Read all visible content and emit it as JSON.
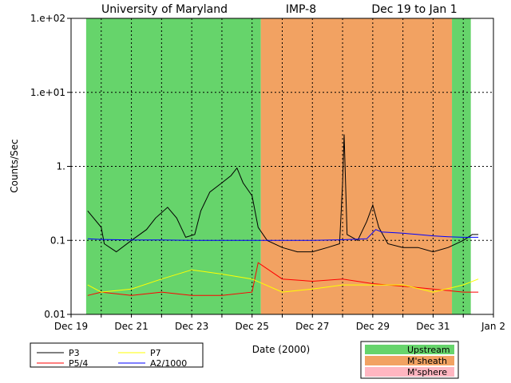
{
  "chart_data": {
    "type": "line",
    "title": {
      "institution": "University of Maryland",
      "spacecraft": "IMP-8",
      "range": "Dec 19 to Jan 1"
    },
    "xlabel": "Date (2000)",
    "ylabel": "Counts/Sec",
    "y_scale": "log",
    "ylim": [
      0.01,
      100
    ],
    "y_ticks": [
      {
        "value": 0.01,
        "label": "0.01"
      },
      {
        "value": 0.1,
        "label": "0.1"
      },
      {
        "value": 1,
        "label": "1."
      },
      {
        "value": 10,
        "label": "1.e+01"
      },
      {
        "value": 100,
        "label": "1.e+02"
      }
    ],
    "xlim": [
      "2000-12-19",
      "2001-01-02"
    ],
    "x_ticks": [
      {
        "day": 0,
        "label": "Dec 19"
      },
      {
        "day": 2,
        "label": "Dec 21"
      },
      {
        "day": 4,
        "label": "Dec 23"
      },
      {
        "day": 6,
        "label": "Dec 25"
      },
      {
        "day": 8,
        "label": "Dec 27"
      },
      {
        "day": 10,
        "label": "Dec 29"
      },
      {
        "day": 12,
        "label": "Dec 31"
      },
      {
        "day": 14,
        "label": "Jan 2"
      }
    ],
    "grid": true,
    "regions": [
      {
        "name": "Upstream",
        "from": "2000-12-19 12:00",
        "to": "2000-12-25 07:00",
        "color": "#66d46b"
      },
      {
        "name": "M'sheath",
        "from": "2000-12-25 07:00",
        "to": "2000-12-31 15:00",
        "color": "#f2a262"
      },
      {
        "name": "Upstream",
        "from": "2000-12-31 15:00",
        "to": "2001-01-01 06:00",
        "color": "#66d46b"
      }
    ],
    "series": [
      {
        "name": "P3",
        "color": "#000000",
        "points": [
          [
            0.55,
            0.25
          ],
          [
            1.0,
            0.15
          ],
          [
            1.1,
            0.09
          ],
          [
            1.5,
            0.07
          ],
          [
            2.0,
            0.1
          ],
          [
            2.5,
            0.14
          ],
          [
            2.8,
            0.2
          ],
          [
            3.2,
            0.28
          ],
          [
            3.5,
            0.2
          ],
          [
            3.8,
            0.11
          ],
          [
            4.1,
            0.12
          ],
          [
            4.3,
            0.25
          ],
          [
            4.6,
            0.45
          ],
          [
            5.0,
            0.6
          ],
          [
            5.3,
            0.75
          ],
          [
            5.5,
            0.95
          ],
          [
            5.7,
            0.6
          ],
          [
            6.0,
            0.4
          ],
          [
            6.2,
            0.15
          ],
          [
            6.5,
            0.1
          ],
          [
            7.0,
            0.08
          ],
          [
            7.5,
            0.07
          ],
          [
            8.0,
            0.07
          ],
          [
            8.5,
            0.08
          ],
          [
            8.9,
            0.09
          ],
          [
            9.0,
            0.6
          ],
          [
            9.05,
            2.7
          ],
          [
            9.15,
            0.12
          ],
          [
            9.5,
            0.1
          ],
          [
            9.8,
            0.18
          ],
          [
            10.0,
            0.3
          ],
          [
            10.2,
            0.15
          ],
          [
            10.5,
            0.09
          ],
          [
            11.0,
            0.08
          ],
          [
            11.5,
            0.08
          ],
          [
            12.0,
            0.07
          ],
          [
            12.5,
            0.08
          ],
          [
            13.0,
            0.1
          ],
          [
            13.3,
            0.12
          ],
          [
            13.5,
            0.12
          ]
        ]
      },
      {
        "name": "P5/4",
        "color": "#ff0000",
        "points": [
          [
            0.55,
            0.018
          ],
          [
            1.0,
            0.02
          ],
          [
            2.0,
            0.018
          ],
          [
            3.0,
            0.02
          ],
          [
            4.0,
            0.018
          ],
          [
            5.0,
            0.018
          ],
          [
            6.0,
            0.02
          ],
          [
            6.2,
            0.05
          ],
          [
            7.0,
            0.03
          ],
          [
            8.0,
            0.028
          ],
          [
            9.0,
            0.03
          ],
          [
            10.0,
            0.026
          ],
          [
            11.0,
            0.024
          ],
          [
            12.0,
            0.022
          ],
          [
            13.0,
            0.02
          ],
          [
            13.5,
            0.02
          ]
        ]
      },
      {
        "name": "P7",
        "color": "#ffff00",
        "points": [
          [
            0.55,
            0.025
          ],
          [
            1.0,
            0.02
          ],
          [
            2.0,
            0.022
          ],
          [
            3.0,
            0.03
          ],
          [
            4.0,
            0.04
          ],
          [
            5.0,
            0.035
          ],
          [
            6.0,
            0.03
          ],
          [
            7.0,
            0.02
          ],
          [
            8.0,
            0.022
          ],
          [
            9.0,
            0.025
          ],
          [
            10.0,
            0.025
          ],
          [
            11.0,
            0.025
          ],
          [
            12.0,
            0.02
          ],
          [
            13.0,
            0.025
          ],
          [
            13.5,
            0.03
          ]
        ]
      },
      {
        "name": "A2/1000",
        "color": "#0000ff",
        "points": [
          [
            0.55,
            0.105
          ],
          [
            1.0,
            0.103
          ],
          [
            2.0,
            0.101
          ],
          [
            3.0,
            0.101
          ],
          [
            4.0,
            0.1
          ],
          [
            5.0,
            0.1
          ],
          [
            6.0,
            0.1
          ],
          [
            7.0,
            0.1
          ],
          [
            8.0,
            0.1
          ],
          [
            9.0,
            0.102
          ],
          [
            9.8,
            0.105
          ],
          [
            10.1,
            0.14
          ],
          [
            10.3,
            0.13
          ],
          [
            11.0,
            0.125
          ],
          [
            11.5,
            0.12
          ],
          [
            12.0,
            0.115
          ],
          [
            12.5,
            0.112
          ],
          [
            13.0,
            0.11
          ],
          [
            13.5,
            0.11
          ]
        ]
      }
    ],
    "legend": {
      "position": "bottom",
      "lines": [
        "P3",
        "P7",
        "P5/4",
        "A2/1000"
      ],
      "regions": [
        {
          "name": "Upstream",
          "color": "#66d46b"
        },
        {
          "name": "M'sheath",
          "color": "#f2a262"
        },
        {
          "name": "M'sphere",
          "color": "#ffb6c1"
        }
      ]
    }
  }
}
